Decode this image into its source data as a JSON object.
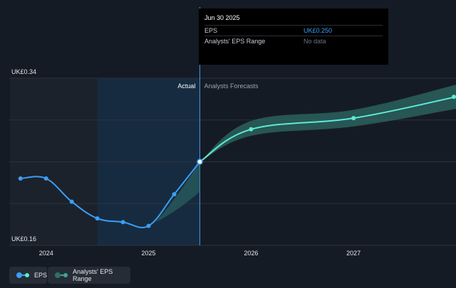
{
  "tooltip": {
    "title": "Jun 30 2025",
    "rows": [
      {
        "label": "EPS",
        "value": "UK£0.250"
      },
      {
        "label": "Analysts' EPS Range",
        "value": "No data"
      }
    ]
  },
  "region_labels": {
    "actual": "Actual",
    "forecast": "Analysts Forecasts"
  },
  "legend": [
    {
      "label": "EPS",
      "color": "#3b9ef5"
    },
    {
      "label": "Analysts' EPS Range",
      "color": "#3aa89a"
    }
  ],
  "colors": {
    "eps": "#3b9ef5",
    "forecast_line": "#5eead4",
    "forecast_band": "#2f6f6a",
    "background": "#151b24",
    "highlight": "#172b40"
  },
  "chart_data": {
    "type": "line",
    "title": "",
    "xlabel": "",
    "ylabel": "",
    "ylim": [
      0.16,
      0.34
    ],
    "y_tick_labels": [
      {
        "value": 0.34,
        "label": "UK£0.34"
      },
      {
        "value": 0.16,
        "label": "UK£0.16"
      }
    ],
    "x_tick_labels": [
      {
        "value": 2024.0,
        "label": "2024"
      },
      {
        "value": 2025.0,
        "label": "2025"
      },
      {
        "value": 2026.0,
        "label": "2026"
      },
      {
        "value": 2027.0,
        "label": "2027"
      }
    ],
    "xlim": [
      2023.55,
      2028.0
    ],
    "gridlines_y": [
      0.16,
      0.205,
      0.25,
      0.295,
      0.34
    ],
    "highlight_period": [
      2024.5,
      2025.5
    ],
    "past_shade_start": 2023.55,
    "series": [
      {
        "name": "EPS",
        "points": [
          {
            "x": 2023.75,
            "y": 0.232
          },
          {
            "x": 2024.0,
            "y": 0.232
          },
          {
            "x": 2024.25,
            "y": 0.207
          },
          {
            "x": 2024.5,
            "y": 0.189
          },
          {
            "x": 2024.75,
            "y": 0.185
          },
          {
            "x": 2025.0,
            "y": 0.181
          },
          {
            "x": 2025.25,
            "y": 0.215
          },
          {
            "x": 2025.5,
            "y": 0.25
          }
        ]
      },
      {
        "name": "Analysts' EPS Range",
        "points": [
          {
            "x": 2025.5,
            "y": 0.25
          },
          {
            "x": 2026.0,
            "y": 0.285
          },
          {
            "x": 2027.0,
            "y": 0.297
          },
          {
            "x": 2028.0,
            "y": 0.32
          }
        ],
        "band": [
          {
            "x": 2025.5,
            "low": 0.25,
            "high": 0.25
          },
          {
            "x": 2026.0,
            "low": 0.278,
            "high": 0.294
          },
          {
            "x": 2027.0,
            "low": 0.288,
            "high": 0.306
          },
          {
            "x": 2028.0,
            "low": 0.307,
            "high": 0.333
          }
        ]
      }
    ],
    "legend_position": "bottom-left"
  }
}
